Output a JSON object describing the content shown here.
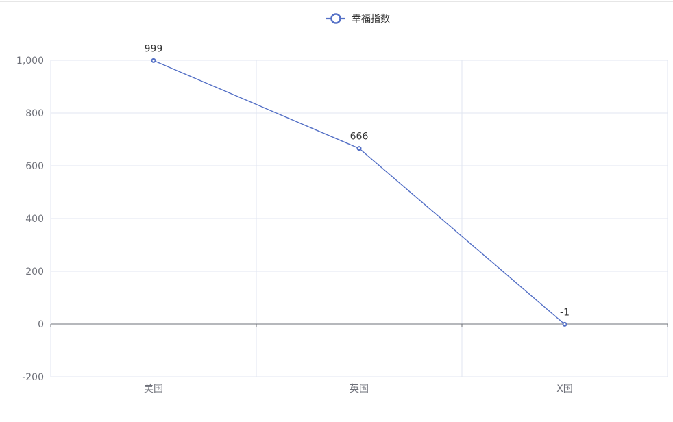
{
  "chart_data": {
    "type": "line",
    "categories": [
      "美国",
      "英国",
      "X国"
    ],
    "series": [
      {
        "name": "幸福指数",
        "values": [
          999,
          666,
          -1
        ],
        "color": "#5470c6"
      }
    ],
    "ylim": [
      -200,
      1000
    ],
    "y_ticks": [
      -200,
      0,
      200,
      400,
      600,
      800,
      1000
    ],
    "y_tick_labels": [
      "-200",
      "0",
      "200",
      "400",
      "600",
      "800",
      "1,000"
    ],
    "data_labels": [
      "999",
      "666",
      "-1"
    ],
    "grid": true,
    "legend_position": "top-center"
  },
  "colors": {
    "series": "#5470c6",
    "grid": "#e0e6f1",
    "axis": "#6e7079"
  }
}
